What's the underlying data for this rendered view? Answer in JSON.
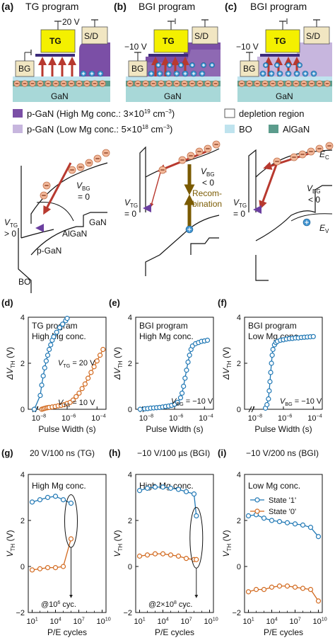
{
  "colors": {
    "tg_yellow": "#f4f000",
    "bg_tan": "#f1e6c2",
    "gan": "#a8d8d8",
    "algan": "#5b9c8c",
    "bo": "#bfe3ee",
    "p_gan_high": "#7b4fa6",
    "p_gan_low": "#c7b6de",
    "dielectric": "#3b2a7a",
    "arrow_red": "#b8392f",
    "electron": "#f2b89a",
    "hole": "#3f92cf",
    "series_blue": "#1f77b4",
    "series_orange": "#d2691e",
    "recomb": "#7a5a00"
  },
  "panels": {
    "a": {
      "label": "(a)",
      "title": "TG program",
      "tg_label": "TG",
      "sd_label": "S/D",
      "bg_label": "BG",
      "gan_label": "GaN",
      "voltage": "20 V"
    },
    "b": {
      "label": "(b)",
      "title": "BGI program",
      "tg_label": "TG",
      "sd_label": "S/D",
      "bg_label": "BG",
      "gan_label": "GaN",
      "voltage": "−10 V"
    },
    "c": {
      "label": "(c)",
      "title": "BGI program",
      "tg_label": "TG",
      "sd_label": "S/D",
      "bg_label": "BG",
      "gan_label": "GaN",
      "voltage": "−10 V"
    }
  },
  "legend": {
    "p_gan_high": "p-GaN (High Mg conc.: 3×10",
    "p_gan_high_exp": "19",
    "p_gan_high_unit": " cm",
    "p_gan_low": "p-GaN (Low Mg conc.: 5×10",
    "p_gan_low_exp": "18",
    "depletion": "depletion region",
    "bo": "BO",
    "algan": "AlGaN",
    "unit_exp": "−3",
    "close": ")"
  },
  "band": {
    "a": {
      "v_tg": "V",
      "v_tg_sub": "TG",
      "v_tg_val": "> 0",
      "v_bg": "V",
      "v_bg_sub": "BG",
      "v_bg_val": "= 0",
      "gan": "GaN",
      "algan": "AlGaN",
      "pgan": "p-GaN",
      "bo": "BO"
    },
    "b": {
      "v_tg": "V",
      "v_tg_sub": "TG",
      "v_tg_val": "= 0",
      "v_bg": "V",
      "v_bg_sub": "BG",
      "v_bg_val": "< 0",
      "recomb1": "Recom-",
      "recomb2": "bination"
    },
    "c": {
      "v_tg": "V",
      "v_tg_sub": "TG",
      "v_tg_val": "= 0",
      "v_bg": "V",
      "v_bg_sub": "BG",
      "v_bg_val": "< 0",
      "ec": "E",
      "ec_sub": "C",
      "ev": "E",
      "ev_sub": "V"
    }
  },
  "chart_data": [
    {
      "panel": "(d)",
      "type": "scatter",
      "xscale": "log",
      "title": "TG program",
      "subtitle": "High Mg conc.",
      "xlabel": "Pulse Width (s)",
      "ylabel": "ΔV",
      "ylabel_sub": "TH",
      "ylabel_unit": " (V)",
      "ylim": [
        0,
        4
      ],
      "yticks": [
        "0",
        "2",
        "4"
      ],
      "xticks": [
        "10",
        "10",
        "10"
      ],
      "xtick_exps": [
        "−8",
        "−6",
        "−4"
      ],
      "xlim_log": [
        -8.6,
        -3.4
      ],
      "series": [
        {
          "name": "V",
          "name_sub": "TG",
          "name_val": " = 20 V",
          "logx": [
            -8.2,
            -7.8,
            -7.7,
            -7.6,
            -7.5,
            -7.4,
            -7.3,
            -7.2,
            -7.1,
            -7.0,
            -6.9,
            -6.7,
            -6.5,
            -6.3,
            -6.1,
            -6.0
          ],
          "y": [
            0.0,
            0.6,
            1.05,
            1.45,
            1.8,
            2.1,
            2.35,
            2.6,
            2.8,
            3.0,
            3.15,
            3.35,
            3.55,
            3.7,
            3.85,
            3.95
          ]
        },
        {
          "name": "V",
          "name_sub": "TG",
          "name_val": " = 10 V",
          "logx": [
            -7.7,
            -7.6,
            -7.5,
            -7.4,
            -7.3,
            -7.2,
            -7.0,
            -6.8,
            -6.6,
            -6.4,
            -6.2,
            -6.0,
            -5.8,
            -5.6,
            -5.4,
            -5.2,
            -5.0,
            -4.8,
            -4.6,
            -4.4,
            -4.2,
            -4.0,
            -3.8,
            -3.6
          ],
          "y": [
            0.0,
            0.02,
            0.04,
            0.06,
            0.07,
            0.08,
            0.1,
            0.12,
            0.15,
            0.17,
            0.2,
            0.25,
            0.3,
            0.4,
            0.55,
            0.7,
            0.9,
            1.1,
            1.35,
            1.6,
            1.85,
            2.1,
            2.35,
            2.6
          ]
        }
      ]
    },
    {
      "panel": "(e)",
      "type": "scatter",
      "xscale": "log",
      "title": "BGI program",
      "subtitle": "High Mg conc.",
      "xlabel": "Pulse Width (s)",
      "ylabel": "ΔV",
      "ylabel_sub": "TH",
      "ylabel_unit": " (V)",
      "ylim": [
        0,
        4
      ],
      "yticks": [
        "0",
        "2",
        "4"
      ],
      "xticks": [
        "10",
        "10",
        "10"
      ],
      "xtick_exps": [
        "−8",
        "−6",
        "−4"
      ],
      "xlim_log": [
        -8.6,
        -3.4
      ],
      "annotation": "V",
      "annotation_sub": "BG",
      "annotation_val": " = −10 V",
      "series": [
        {
          "name": "V_BG = -10 V",
          "logx": [
            -8.3,
            -8.0,
            -7.8,
            -7.6,
            -7.4,
            -7.2,
            -7.0,
            -6.8,
            -6.6,
            -6.4,
            -6.2,
            -6.0,
            -5.8,
            -5.6,
            -5.5,
            -5.4,
            -5.3,
            -5.2,
            -5.1,
            -5.0,
            -4.9,
            -4.8,
            -4.6,
            -4.4,
            -4.2,
            -4.0,
            -3.8
          ],
          "y": [
            0.0,
            0.02,
            0.03,
            0.05,
            0.06,
            0.07,
            0.08,
            0.1,
            0.12,
            0.14,
            0.17,
            0.22,
            0.3,
            0.5,
            0.7,
            1.0,
            1.35,
            1.7,
            2.05,
            2.35,
            2.6,
            2.75,
            2.85,
            2.9,
            2.95,
            2.97,
            3.0
          ]
        }
      ]
    },
    {
      "panel": "(f)",
      "type": "scatter",
      "xscale": "log",
      "title": "BGI program",
      "subtitle": "Low Mg conc.",
      "xlabel": "Pulse Width (s)",
      "ylabel": "ΔV",
      "ylabel_sub": "TH",
      "ylabel_unit": " (V)",
      "ylim": [
        0,
        4
      ],
      "yticks": [
        "0",
        "2",
        "4"
      ],
      "xticks": [
        "10",
        "10",
        "10"
      ],
      "xtick_exps": [
        "−8",
        "−6",
        "−4"
      ],
      "xlim_log": [
        -8.6,
        -3.4
      ],
      "annotation": "V",
      "annotation_sub": "BG",
      "annotation_val": " = −10 V",
      "series": [
        {
          "name": "V_BG = -10 V",
          "logx": [
            -7.2,
            -7.1,
            -7.0,
            -6.95,
            -6.9,
            -6.85,
            -6.8,
            -6.75,
            -6.7,
            -6.6,
            -6.5,
            -6.4,
            -6.2,
            -6.0,
            -5.8,
            -5.6,
            -5.4,
            -5.2,
            -5.0,
            -4.8,
            -4.6,
            -4.4,
            -4.2,
            -4.0
          ],
          "y": [
            0.05,
            0.2,
            0.45,
            0.8,
            1.2,
            1.6,
            2.0,
            2.35,
            2.6,
            2.8,
            2.9,
            2.95,
            3.0,
            3.02,
            3.05,
            3.07,
            3.08,
            3.1,
            3.1,
            3.12,
            3.13,
            3.14,
            3.15,
            3.16
          ]
        }
      ]
    },
    {
      "panel": "(g)",
      "type": "line",
      "xscale": "log",
      "header": "20 V/100 ns (TG)",
      "subtitle": "High Mg conc.",
      "xlabel": "P/E cycles",
      "ylabel": "V",
      "ylabel_sub": "TH",
      "ylabel_unit": " (V)",
      "ylim": [
        -2,
        4
      ],
      "yticks": [
        "−2",
        "0",
        "2",
        "4"
      ],
      "xticks": [
        "10",
        "10",
        "10",
        "10",
        "10"
      ],
      "xtick_exps": [
        "1",
        "4",
        "7",
        "10",
        ""
      ],
      "xlim_log": [
        0.5,
        10.5
      ],
      "annotation": "@10",
      "annotation_exp": "6",
      "annotation_tail": " cyc.",
      "series": [
        {
          "name": "State '1'",
          "logx": [
            1,
            2,
            3,
            4,
            5,
            6
          ],
          "y": [
            2.8,
            2.9,
            3.0,
            3.05,
            2.9,
            2.75
          ]
        },
        {
          "name": "State '0'",
          "logx": [
            1,
            2,
            3,
            4,
            5,
            6
          ],
          "y": [
            -0.15,
            -0.1,
            -0.05,
            -0.05,
            0.0,
            1.2
          ]
        }
      ]
    },
    {
      "panel": "(h)",
      "type": "line",
      "xscale": "log",
      "header": "−10 V/100 µs (BGI)",
      "subtitle": "High Mg conc.",
      "xlabel": "P/E cycles",
      "ylabel": "V",
      "ylabel_sub": "TH",
      "ylabel_unit": " (V)",
      "ylim": [
        -2,
        4
      ],
      "yticks": [
        "−2",
        "0",
        "2",
        "4"
      ],
      "xticks": [
        "10",
        "10",
        "10",
        "10",
        "10"
      ],
      "xtick_exps": [
        "1",
        "4",
        "7",
        "10",
        ""
      ],
      "xlim_log": [
        0.5,
        10.5
      ],
      "annotation": "@2×10",
      "annotation_exp": "8",
      "annotation_tail": " cyc.",
      "series": [
        {
          "name": "State '1'",
          "logx": [
            1,
            2,
            3,
            4,
            5,
            6,
            7,
            8,
            8.3
          ],
          "y": [
            3.3,
            3.4,
            3.45,
            3.45,
            3.4,
            3.35,
            3.25,
            3.15,
            2.2
          ]
        },
        {
          "name": "State '0'",
          "logx": [
            1,
            2,
            3,
            4,
            5,
            6,
            7,
            8,
            8.3
          ],
          "y": [
            0.45,
            0.5,
            0.55,
            0.55,
            0.5,
            0.45,
            0.35,
            0.3,
            0.3
          ]
        }
      ]
    },
    {
      "panel": "(i)",
      "type": "line",
      "xscale": "log",
      "header": "−10 V/200 ns (BGI)",
      "subtitle": "Low Mg conc.",
      "xlabel": "P/E cycles",
      "ylabel": "V",
      "ylabel_sub": "TH",
      "ylabel_unit": " (V)",
      "ylim": [
        -2,
        4
      ],
      "yticks": [
        "−2",
        "0",
        "2",
        "4"
      ],
      "xticks": [
        "10",
        "10",
        "10",
        "10",
        "10"
      ],
      "xtick_exps": [
        "1",
        "4",
        "7",
        "10",
        ""
      ],
      "xlim_log": [
        0.5,
        10.5
      ],
      "legend": "top-right",
      "series": [
        {
          "name": "State '1'",
          "logx": [
            1,
            2,
            3,
            4,
            5,
            6,
            7,
            8,
            9,
            10
          ],
          "y": [
            2.2,
            2.25,
            2.1,
            2.0,
            1.95,
            1.9,
            1.85,
            1.8,
            1.7,
            1.3
          ]
        },
        {
          "name": "State '0'",
          "logx": [
            1,
            2,
            3,
            4,
            5,
            6,
            7,
            8,
            9,
            10
          ],
          "y": [
            -1.1,
            -1.0,
            -1.0,
            -0.9,
            -0.85,
            -0.85,
            -0.9,
            -0.95,
            -1.0,
            -1.5
          ]
        }
      ]
    }
  ]
}
